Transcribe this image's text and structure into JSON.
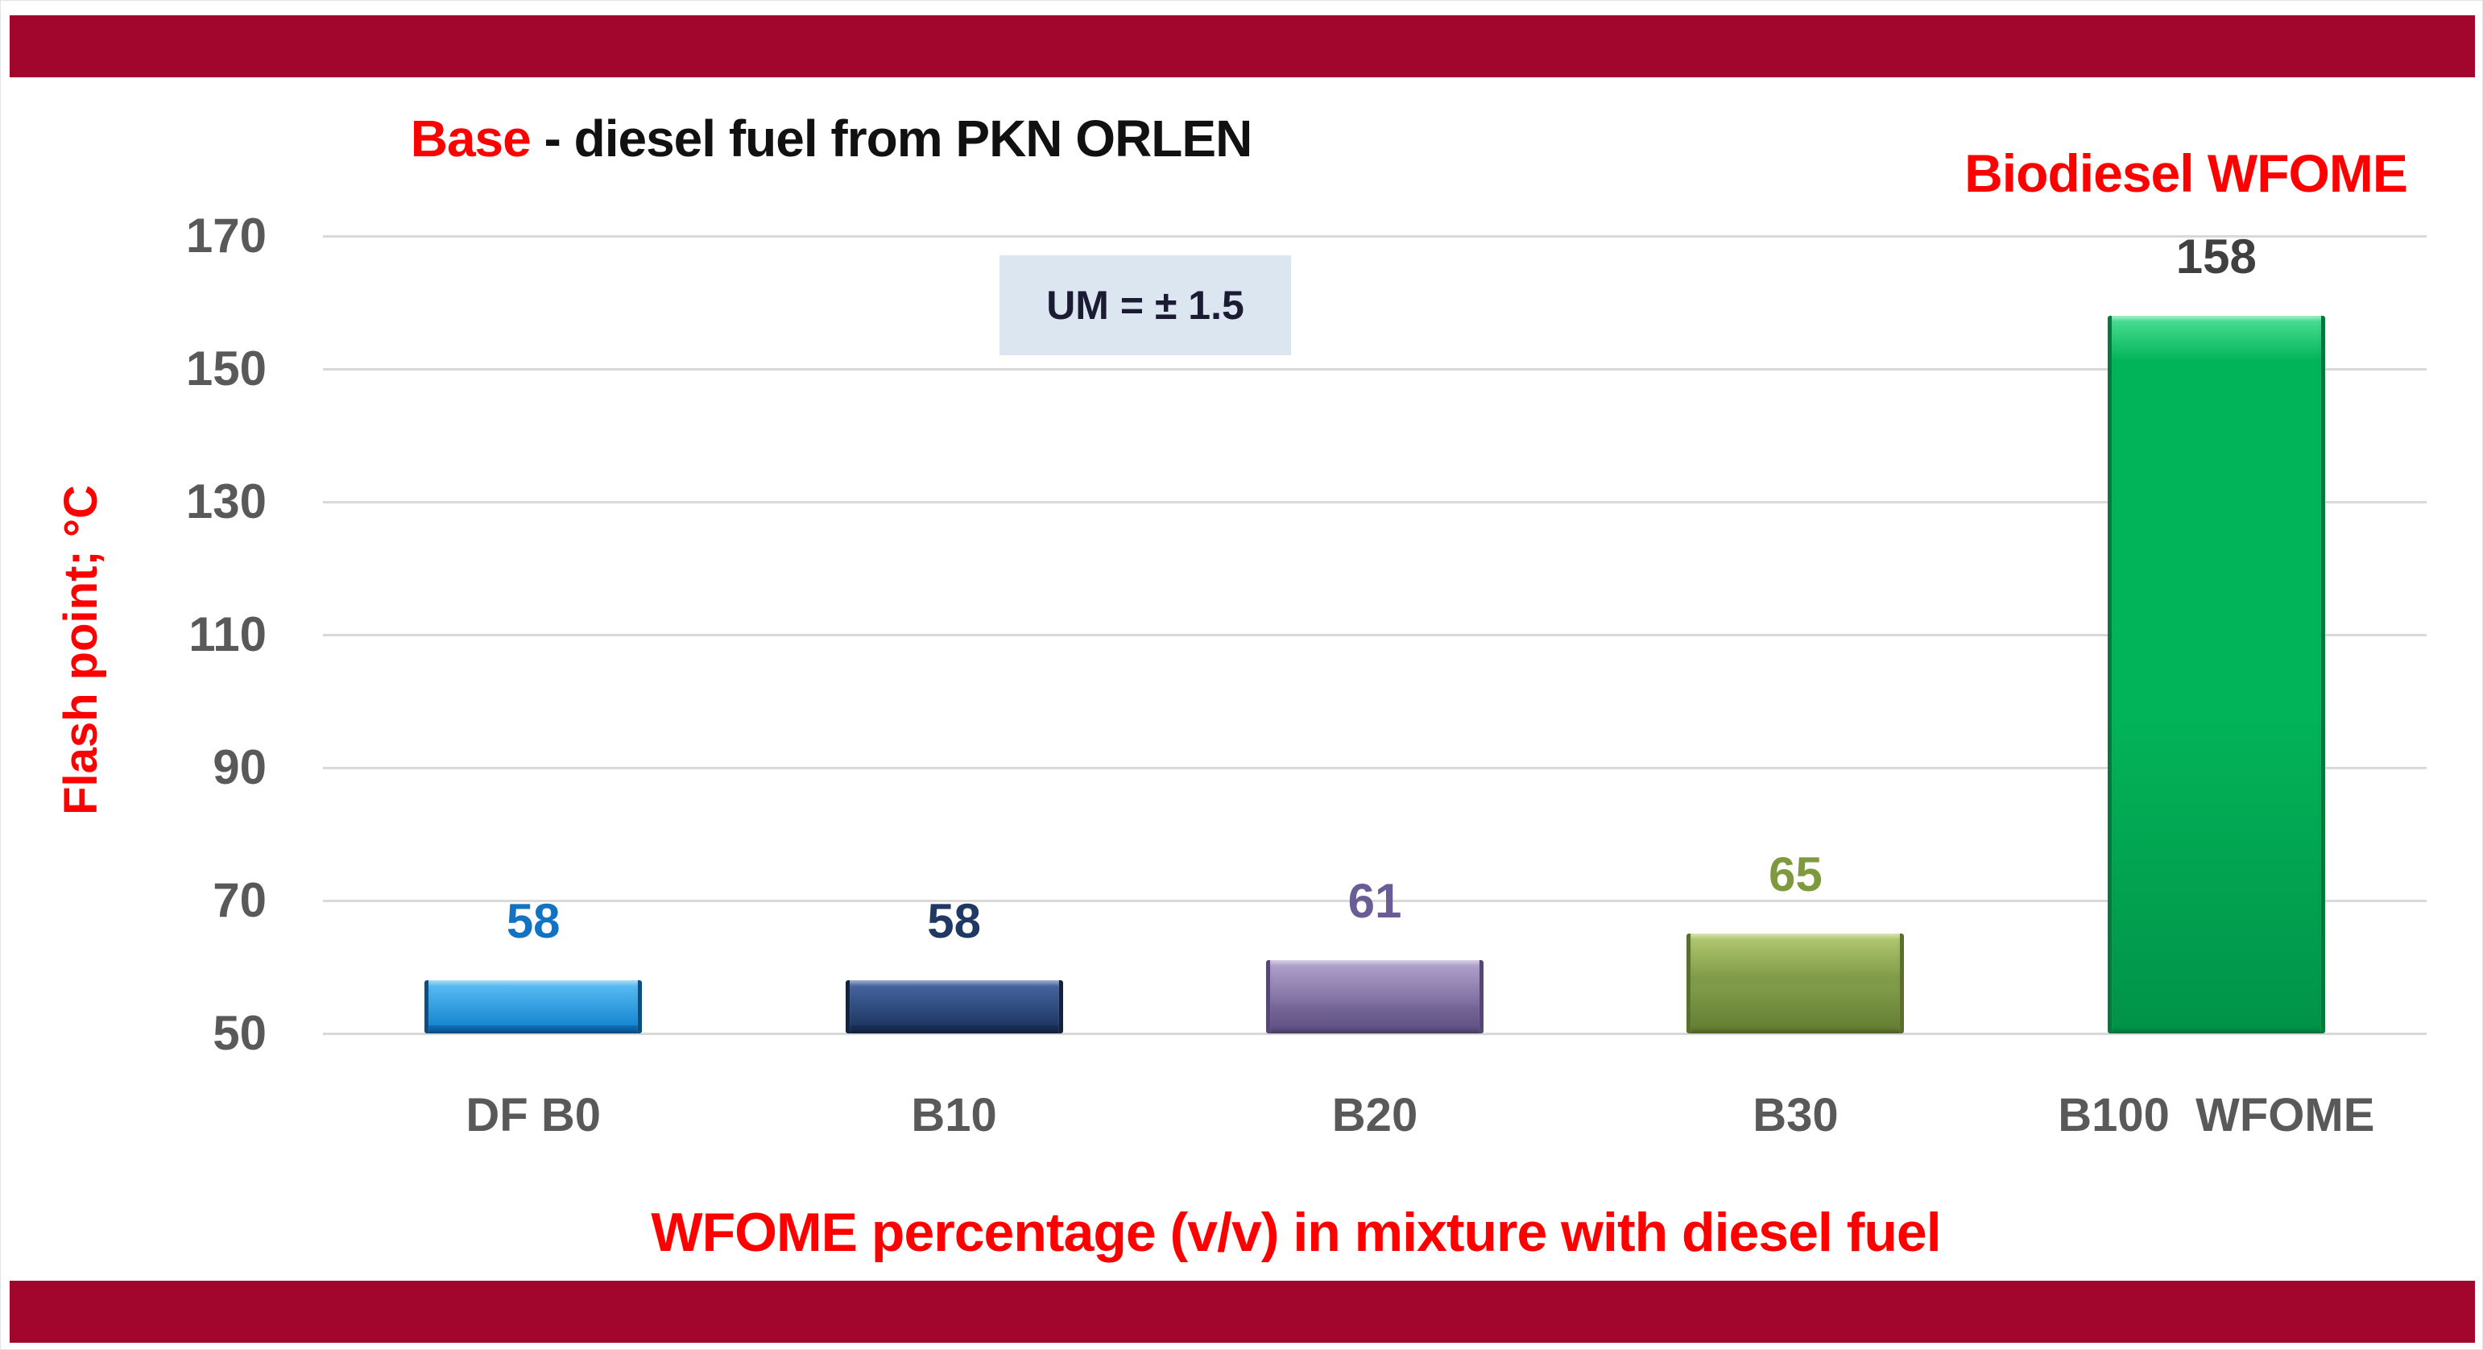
{
  "page": {
    "banner_color": "#a2062c",
    "background": "#ffffff"
  },
  "header": {
    "title_base": "Base",
    "title_rest": " - diesel fuel from PKN ORLEN",
    "right_label": "Biodiesel WFOME",
    "right_label_color": "#ff0000"
  },
  "note": {
    "text": "UM = ± 1.5",
    "background": "#dce6f1"
  },
  "chart_data": {
    "type": "bar",
    "title": "Base - diesel fuel from PKN ORLEN",
    "xlabel": "WFOME percentage (v/v) in mixture with diesel fuel",
    "ylabel": "Flash point; °C",
    "ylim": [
      50,
      170
    ],
    "yticks": [
      170,
      150,
      130,
      110,
      90,
      70,
      50
    ],
    "grid": true,
    "legend": false,
    "annotation": "UM = ± 1.5",
    "categories": [
      "DF B0",
      "B10",
      "B20",
      "B30",
      "B100  WFOME"
    ],
    "values": [
      58,
      58,
      61,
      65,
      158
    ],
    "bars": [
      {
        "category": "DF B0",
        "value": 58,
        "body": "#1787d2",
        "highlight": "#5fc0f5",
        "shade": "#0c62a6",
        "edge": "#0a4e86",
        "value_color": "#1272c4"
      },
      {
        "category": "B10",
        "value": 58,
        "body": "#1f3864",
        "highlight": "#4a6aa5",
        "shade": "#152a4e",
        "edge": "#12233f",
        "value_color": "#1f3864"
      },
      {
        "category": "B20",
        "value": 61,
        "body": "#7c6c9e",
        "highlight": "#b3a6ce",
        "shade": "#5c4e80",
        "edge": "#554677",
        "value_color": "#6a5c94"
      },
      {
        "category": "B30",
        "value": 65,
        "body": "#7f9a48",
        "highlight": "#b5cc72",
        "shade": "#637c31",
        "edge": "#58702b",
        "value_color": "#7f9a3e"
      },
      {
        "category": "B100  WFOME",
        "value": 158,
        "body": "#02b459",
        "highlight": "#4fe095",
        "shade": "#019348",
        "edge": "#017a3c",
        "value_color": "#404040"
      }
    ],
    "tick_color": "#595959",
    "category_color": "#595959",
    "gridline_color": "#d9d9d9",
    "axis_title_color": "#ff0000"
  }
}
